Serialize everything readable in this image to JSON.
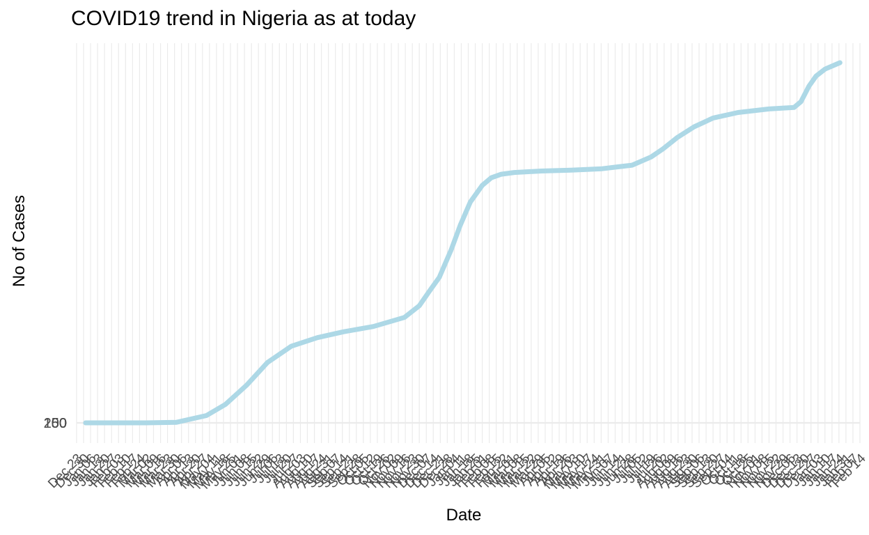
{
  "chart_data": {
    "type": "line",
    "title": "COVID19 trend in Nigeria as at today",
    "xlabel": "Date",
    "ylabel": "No of Cases",
    "y_tick_labels": [
      "200",
      "150",
      "100",
      "50",
      "0"
    ],
    "x_tick_labels": [
      "Dec 23",
      "Dec 30",
      "Jan 06",
      "Jan 13",
      "Jan 20",
      "Jan 27",
      "Feb 03",
      "Feb 10",
      "Feb 17",
      "Feb 24",
      "Mar 02",
      "Mar 09",
      "Mar 16",
      "Mar 23",
      "Mar 30",
      "Apr 06",
      "Apr 13",
      "Apr 20",
      "Apr 27",
      "May 04",
      "May 11",
      "May 18",
      "May 25",
      "Jun 01",
      "Jun 08",
      "Jun 15",
      "Jun 22",
      "Jun 29",
      "Jul 06",
      "Jul 13",
      "Jul 20",
      "Jul 27",
      "Aug 03",
      "Aug 10",
      "Aug 17",
      "Aug 24",
      "Aug 31",
      "Sep 07",
      "Sep 14",
      "Sep 21",
      "Sep 28",
      "Oct 05",
      "Oct 12",
      "Oct 19",
      "Oct 26",
      "Nov 02",
      "Nov 09",
      "Nov 16",
      "Nov 23",
      "Nov 30",
      "Dec 07",
      "Dec 14",
      "Dec 21",
      "Dec 28",
      "Jan 04",
      "Jan 11",
      "Jan 18",
      "Jan 25",
      "Feb 01",
      "Feb 08",
      "Feb 15",
      "Feb 22",
      "Mar 01",
      "Mar 08",
      "Mar 15",
      "Mar 22",
      "Mar 29",
      "Apr 05",
      "Apr 12",
      "Apr 19",
      "Apr 26",
      "May 03",
      "May 10",
      "May 17",
      "May 24",
      "May 31",
      "Jun 07",
      "Jun 14",
      "Jun 21",
      "Jun 28",
      "Jul 05",
      "Jul 12",
      "Jul 19",
      "Jul 26",
      "Aug 02",
      "Aug 09",
      "Aug 16",
      "Aug 23",
      "Aug 30",
      "Sep 06",
      "Sep 13",
      "Sep 20",
      "Sep 27",
      "Oct 04",
      "Oct 11",
      "Oct 18",
      "Oct 25",
      "Nov 01",
      "Nov 08",
      "Nov 15",
      "Nov 22",
      "Nov 29",
      "Dec 06",
      "Dec 13",
      "Dec 20",
      "Dec 27",
      "Jan 03",
      "Jan 10",
      "Jan 17",
      "Jan 24",
      "Jan 31",
      "Feb 07",
      "Feb 14"
    ],
    "x_range": [
      "2019-12-23",
      "2022-02-14"
    ],
    "series": [
      {
        "color": "#add8e6",
        "x": [
          "2020-01-01",
          "2020-03-01",
          "2020-04-01",
          "2020-05-01",
          "2020-05-20",
          "2020-06-10",
          "2020-07-01",
          "2020-07-25",
          "2020-08-20",
          "2020-09-15",
          "2020-10-15",
          "2020-11-15",
          "2020-11-30",
          "2020-12-10",
          "2020-12-20",
          "2021-01-01",
          "2021-01-10",
          "2021-01-20",
          "2021-02-01",
          "2021-02-10",
          "2021-02-20",
          "2021-03-05",
          "2021-04-01",
          "2021-05-01",
          "2021-06-01",
          "2021-07-01",
          "2021-07-20",
          "2021-08-01",
          "2021-08-15",
          "2021-09-01",
          "2021-09-20",
          "2021-10-15",
          "2021-11-15",
          "2021-12-10",
          "2021-12-17",
          "2021-12-25",
          "2022-01-01",
          "2022-01-10",
          "2022-01-25"
        ],
        "y": [
          0,
          0,
          0.2,
          2.5,
          6.3,
          12.8,
          20.6,
          26.2,
          29.1,
          31.1,
          32.9,
          36.0,
          40.0,
          44.9,
          49.7,
          59.2,
          67.5,
          75.4,
          81.1,
          83.7,
          84.9,
          85.5,
          86.0,
          86.3,
          86.8,
          88.0,
          90.8,
          93.6,
          97.4,
          101.1,
          104.1,
          106.0,
          107.2,
          107.7,
          109.7,
          115.0,
          118.4,
          120.8,
          123.0
        ]
      }
    ]
  }
}
